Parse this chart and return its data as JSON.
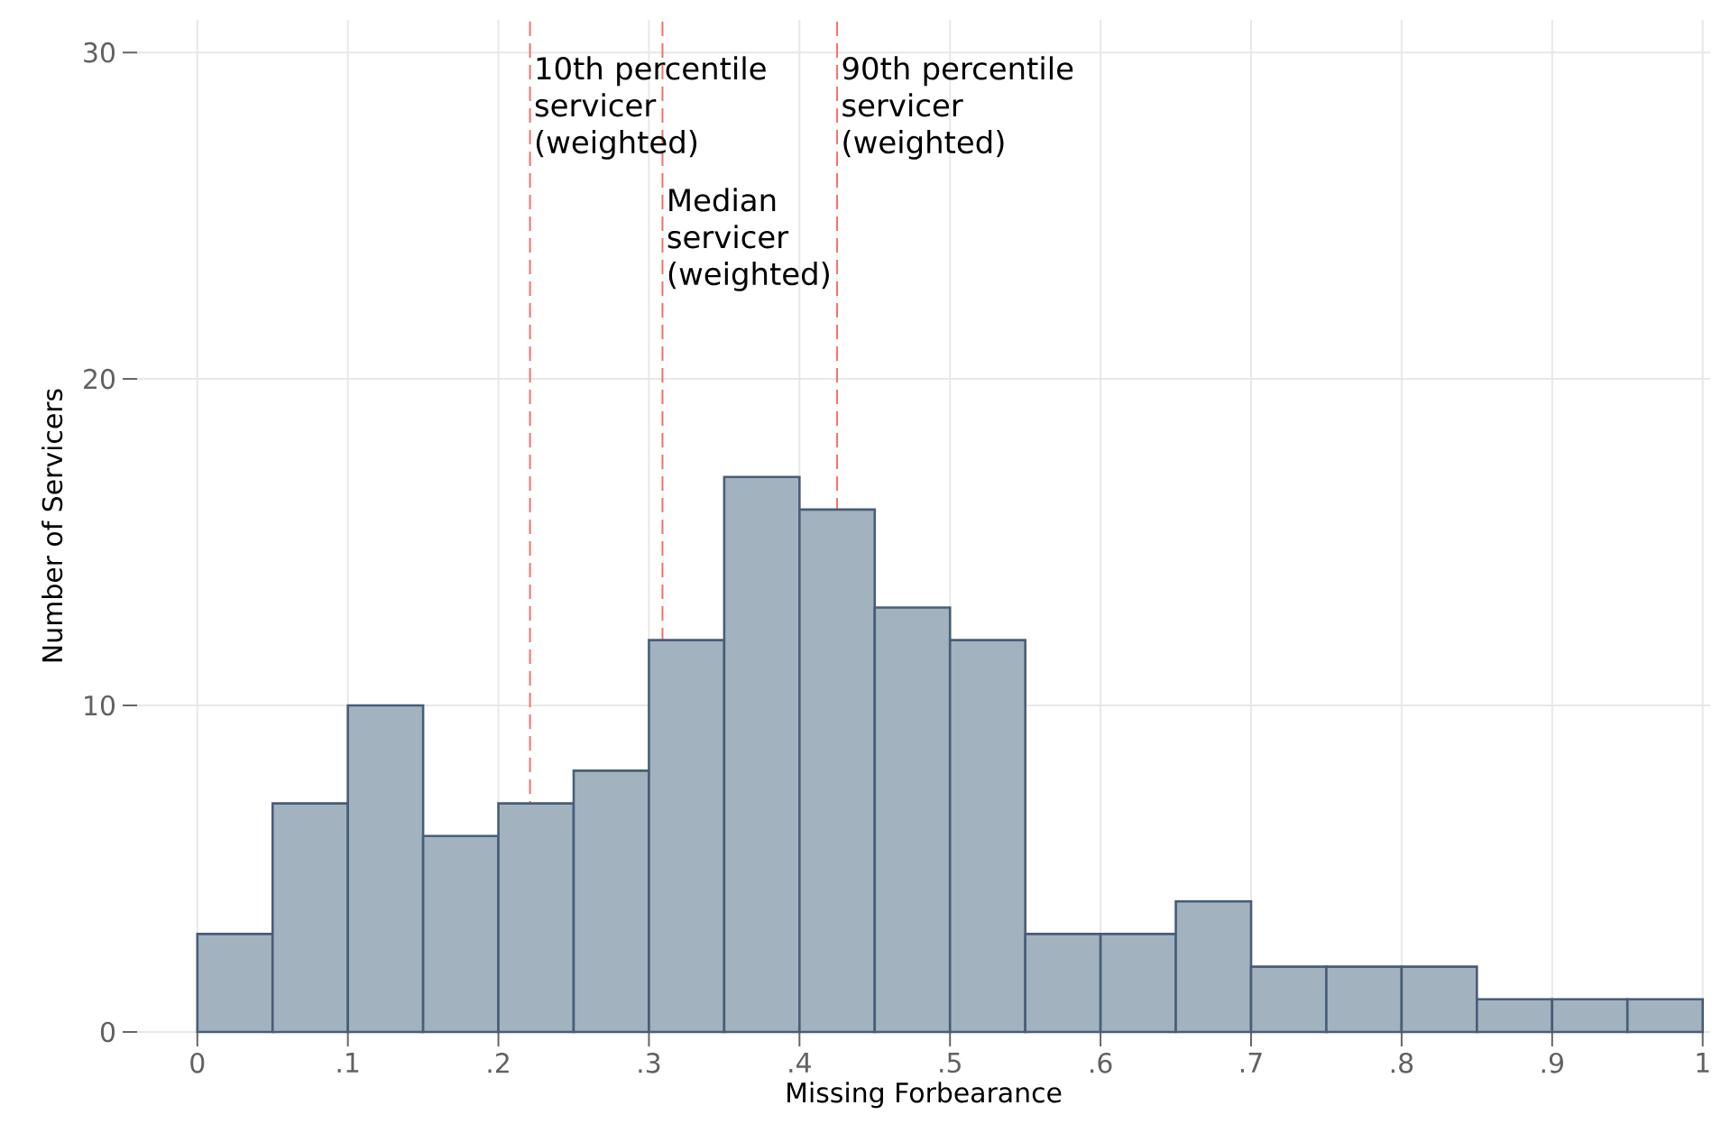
{
  "chart_data": {
    "type": "histogram",
    "xlabel": "Missing Forbearance",
    "ylabel": "Number of Servicers",
    "bins": [
      0,
      0.05,
      0.1,
      0.15,
      0.2,
      0.25,
      0.3,
      0.35,
      0.4,
      0.45,
      0.5,
      0.55,
      0.6,
      0.65,
      0.7,
      0.75,
      0.8,
      0.85,
      0.9,
      0.95,
      1
    ],
    "values": [
      3,
      7,
      10,
      6,
      7,
      8,
      12,
      17,
      16,
      13,
      12,
      3,
      3,
      4,
      2,
      2,
      2,
      1,
      1,
      1
    ],
    "color": "#a2b3bf",
    "xlim": [
      -0.04,
      1.005
    ],
    "ylim": [
      0,
      31
    ],
    "xticks": [
      0,
      {
        "value": 0.1,
        "label": ".1"
      },
      {
        "value": 0.2,
        "label": ".2"
      },
      {
        "value": 0.3,
        "label": ".3"
      },
      {
        "value": 0.4,
        "label": ".4"
      },
      {
        "value": 0.5,
        "label": ".5"
      },
      {
        "value": 0.6,
        "label": ".6"
      },
      {
        "value": 0.7,
        "label": ".7"
      },
      {
        "value": 0.8,
        "label": ".8"
      },
      {
        "value": 0.9,
        "label": ".9"
      },
      1
    ],
    "yticks": [
      0,
      10,
      20,
      30
    ],
    "grid": true,
    "ref_lines": [
      {
        "axis": "x",
        "value": 0.221,
        "label": "10th percentile servicer (weighted)",
        "color": "#f4716a",
        "line_style": "dashed"
      },
      {
        "axis": "x",
        "value": 0.309,
        "label": "Median servicer (weighted)",
        "color": "#f4716a",
        "line_style": "dashed"
      },
      {
        "axis": "x",
        "value": 0.425,
        "label": "90th percentile servicer (weighted)",
        "color": "#f4716a",
        "line_style": "dashed"
      }
    ]
  }
}
